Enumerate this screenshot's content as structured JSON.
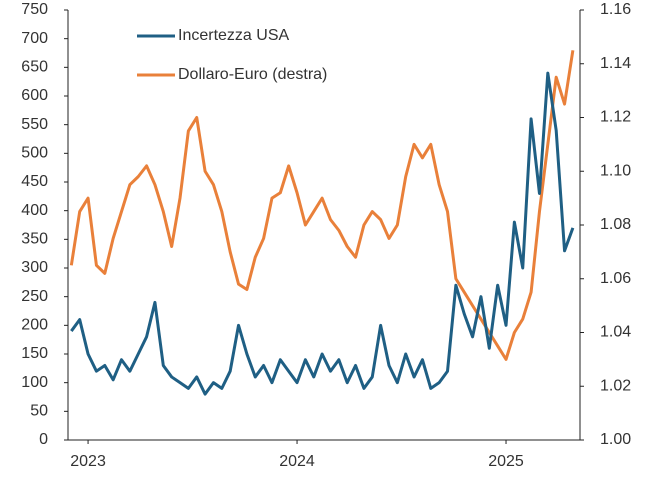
{
  "chart_data": {
    "type": "line",
    "x": [
      2022.92,
      2022.96,
      2023.0,
      2023.04,
      2023.08,
      2023.12,
      2023.16,
      2023.2,
      2023.24,
      2023.28,
      2023.32,
      2023.36,
      2023.4,
      2023.44,
      2023.48,
      2023.52,
      2023.56,
      2023.6,
      2023.64,
      2023.68,
      2023.72,
      2023.76,
      2023.8,
      2023.84,
      2023.88,
      2023.92,
      2023.96,
      2024.0,
      2024.04,
      2024.08,
      2024.12,
      2024.16,
      2024.2,
      2024.24,
      2024.28,
      2024.32,
      2024.36,
      2024.4,
      2024.44,
      2024.48,
      2024.52,
      2024.56,
      2024.6,
      2024.64,
      2024.68,
      2024.72,
      2024.76,
      2024.8,
      2024.84,
      2024.88,
      2024.92,
      2024.96,
      2025.0,
      2025.04,
      2025.08,
      2025.12,
      2025.16,
      2025.2,
      2025.24,
      2025.28,
      2025.32
    ],
    "xlim": [
      2022.904,
      2025.354
    ],
    "xticks": [
      2023,
      2024,
      2025
    ],
    "ylim": [
      0,
      750
    ],
    "yticks": [
      0,
      50,
      100,
      150,
      200,
      250,
      300,
      350,
      400,
      450,
      500,
      550,
      600,
      650,
      700,
      750
    ],
    "y2lim": [
      1.0,
      1.16
    ],
    "y2ticks": [
      {
        "value": 1.0,
        "label": "1.00"
      },
      {
        "value": 1.02,
        "label": "1.02"
      },
      {
        "value": 1.04,
        "label": "1.04"
      },
      {
        "value": 1.06,
        "label": "1.06"
      },
      {
        "value": 1.08,
        "label": "1.08"
      },
      {
        "value": 1.1,
        "label": "1.10"
      },
      {
        "value": 1.12,
        "label": "1.12"
      },
      {
        "value": 1.14,
        "label": "1.14"
      },
      {
        "value": 1.16,
        "label": "1.16"
      }
    ],
    "legend": "top-left",
    "series": [
      {
        "name": "Incertezza USA",
        "color": "#1f5f84",
        "values": [
          190,
          210,
          150,
          120,
          130,
          105,
          140,
          120,
          150,
          180,
          240,
          130,
          110,
          100,
          90,
          110,
          80,
          100,
          90,
          120,
          200,
          150,
          110,
          130,
          100,
          140,
          120,
          100,
          140,
          110,
          150,
          120,
          140,
          100,
          130,
          90,
          110,
          200,
          130,
          100,
          150,
          110,
          140,
          90,
          100,
          120,
          270,
          220,
          180,
          250,
          160,
          270,
          200,
          380,
          300,
          560,
          430,
          640,
          540,
          330,
          370
        ]
      },
      {
        "name": "Dollaro-Euro (destra)",
        "color": "#e9803a",
        "axis": "y2",
        "values": [
          1.065,
          1.085,
          1.09,
          1.065,
          1.062,
          1.075,
          1.085,
          1.095,
          1.098,
          1.102,
          1.095,
          1.085,
          1.072,
          1.09,
          1.115,
          1.12,
          1.1,
          1.095,
          1.085,
          1.07,
          1.058,
          1.056,
          1.068,
          1.075,
          1.09,
          1.092,
          1.102,
          1.092,
          1.08,
          1.085,
          1.09,
          1.082,
          1.078,
          1.072,
          1.068,
          1.08,
          1.085,
          1.082,
          1.075,
          1.08,
          1.098,
          1.11,
          1.105,
          1.11,
          1.095,
          1.085,
          1.06,
          1.055,
          1.05,
          1.045,
          1.04,
          1.035,
          1.03,
          1.04,
          1.045,
          1.055,
          1.085,
          1.11,
          1.135,
          1.125,
          1.145
        ]
      }
    ]
  }
}
